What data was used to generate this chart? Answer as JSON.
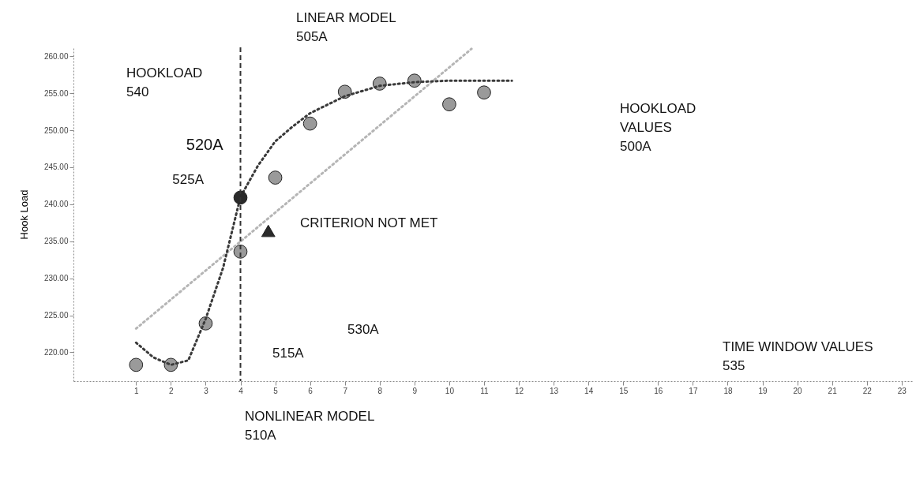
{
  "chart_data": {
    "type": "scatter",
    "ylabel": "Hook Load",
    "xlim": [
      -0.8,
      23.3
    ],
    "ylim": [
      216.1,
      261.2
    ],
    "xticks": [
      1,
      2,
      3,
      4,
      5,
      6,
      7,
      8,
      9,
      10,
      11,
      12,
      13,
      14,
      15,
      16,
      17,
      18,
      19,
      20,
      21,
      22,
      23
    ],
    "yticks": [
      {
        "value": 220,
        "label": "220.00"
      },
      {
        "value": 225,
        "label": "225.00"
      },
      {
        "value": 230,
        "label": "230.00"
      },
      {
        "value": 235,
        "label": "235.00"
      },
      {
        "value": 240,
        "label": "240.00"
      },
      {
        "value": 245,
        "label": "245.00"
      },
      {
        "value": 250,
        "label": "250.00"
      },
      {
        "value": 255,
        "label": "255.00"
      },
      {
        "value": 260,
        "label": "260.00"
      }
    ],
    "grid": false,
    "series": [
      {
        "marker": "circle",
        "color": "#9a9a9a",
        "x": [
          1,
          2,
          3,
          4,
          5,
          6,
          7,
          8,
          9,
          10,
          11
        ],
        "values": [
          218.3,
          218.3,
          223.9,
          233.6,
          243.6,
          250.9,
          255.2,
          256.3,
          256.7,
          253.5,
          255.1
        ]
      },
      {
        "type": "line",
        "line_style": "dotted",
        "color": "#b5b5b5",
        "x": [
          1,
          10.64
        ],
        "values": [
          223.2,
          261.0
        ]
      },
      {
        "type": "line",
        "line_style": "dotted",
        "color": "#3a3a3a",
        "x": [
          1,
          1.5,
          2,
          2.5,
          3,
          3.5,
          4,
          4.5,
          5,
          5.5,
          6,
          7,
          8,
          9,
          10,
          11,
          11.8
        ],
        "values": [
          221.3,
          219.3,
          218.3,
          218.9,
          224.5,
          231.4,
          241.0,
          245.2,
          248.5,
          250.5,
          252.3,
          254.6,
          256.0,
          256.5,
          256.7,
          256.7,
          256.7
        ]
      },
      {
        "marker": "circle",
        "color": "#2a2a2a",
        "x": [
          4
        ],
        "values": [
          240.9
        ]
      },
      {
        "marker": "triangle",
        "color": "#2a2a2a",
        "x": [
          4.8
        ],
        "values": [
          236.4
        ]
      }
    ],
    "ref_lines": [
      {
        "axis": "x",
        "value": 4,
        "label": "520A",
        "line_style": "dashed",
        "color": "#333333"
      }
    ],
    "annotations": [
      "HOOKLOAD\n540",
      "LINEAR MODEL\n505A",
      "HOOKLOAD\nVALUES\n500A",
      "525A",
      "CRITERION NOT MET",
      "515A",
      "530A",
      "NONLINEAR MODEL\n510A",
      "TIME WINDOW VALUES\n535"
    ]
  }
}
